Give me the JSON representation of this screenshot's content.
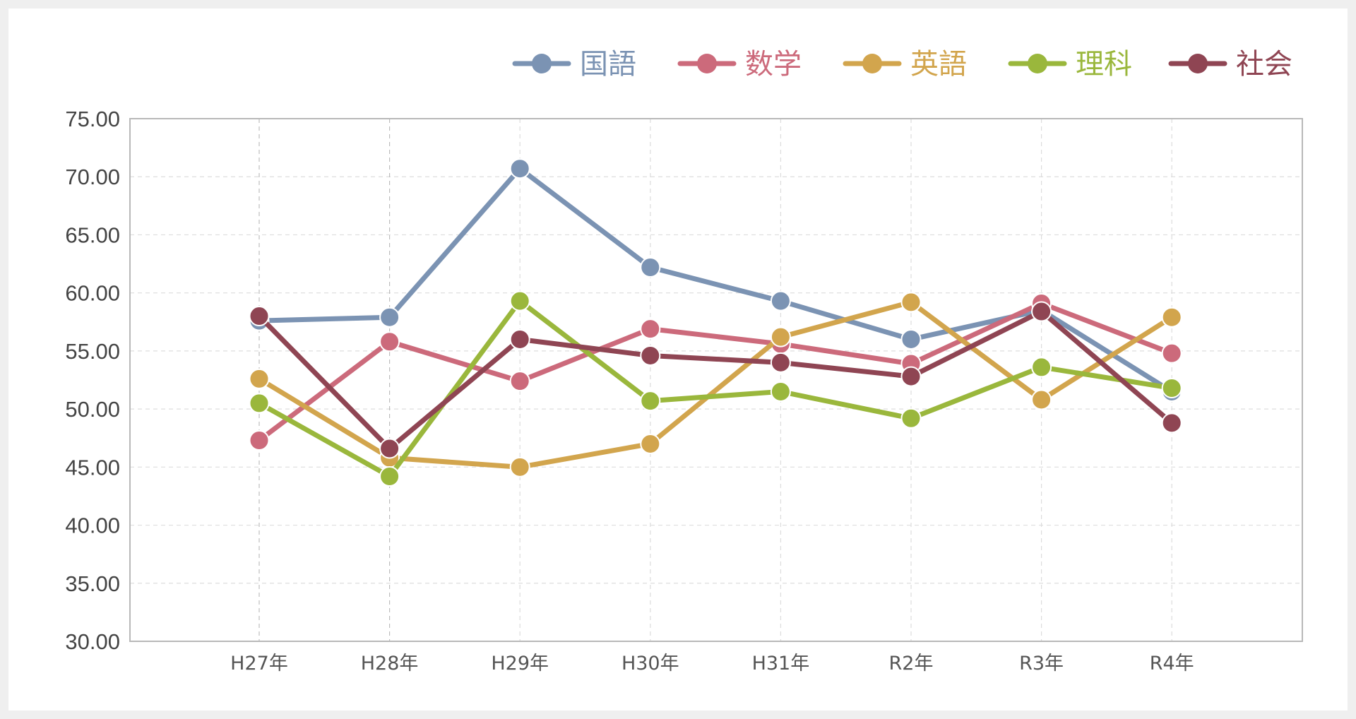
{
  "chart_data": {
    "type": "line",
    "title": "",
    "xlabel": "",
    "ylabel": "",
    "categories": [
      "H27年",
      "H28年",
      "H29年",
      "H30年",
      "H31年",
      "R2年",
      "R3年",
      "R4年"
    ],
    "ylim": [
      30,
      75
    ],
    "yticks": [
      "30.00",
      "35.00",
      "40.00",
      "45.00",
      "50.00",
      "55.00",
      "60.00",
      "65.00",
      "70.00",
      "75.00"
    ],
    "grid": true,
    "legend_position": "top-right",
    "series": [
      {
        "name": "国語",
        "color": "#7b93b3",
        "values": [
          57.6,
          57.9,
          70.7,
          62.2,
          59.3,
          56.0,
          58.5,
          51.5
        ]
      },
      {
        "name": "数学",
        "color": "#cc6a7b",
        "values": [
          47.3,
          55.8,
          52.4,
          56.9,
          55.6,
          53.9,
          59.1,
          54.8
        ]
      },
      {
        "name": "英語",
        "color": "#d2a54d",
        "values": [
          52.6,
          45.8,
          45.0,
          47.0,
          56.2,
          59.2,
          50.8,
          57.9
        ]
      },
      {
        "name": "理科",
        "color": "#9ab73c",
        "values": [
          50.5,
          44.2,
          59.3,
          50.7,
          51.5,
          49.2,
          53.6,
          51.8
        ]
      },
      {
        "name": "社会",
        "color": "#8f4553",
        "values": [
          58.0,
          46.6,
          56.0,
          54.6,
          54.0,
          52.8,
          58.4,
          48.8
        ]
      }
    ]
  }
}
